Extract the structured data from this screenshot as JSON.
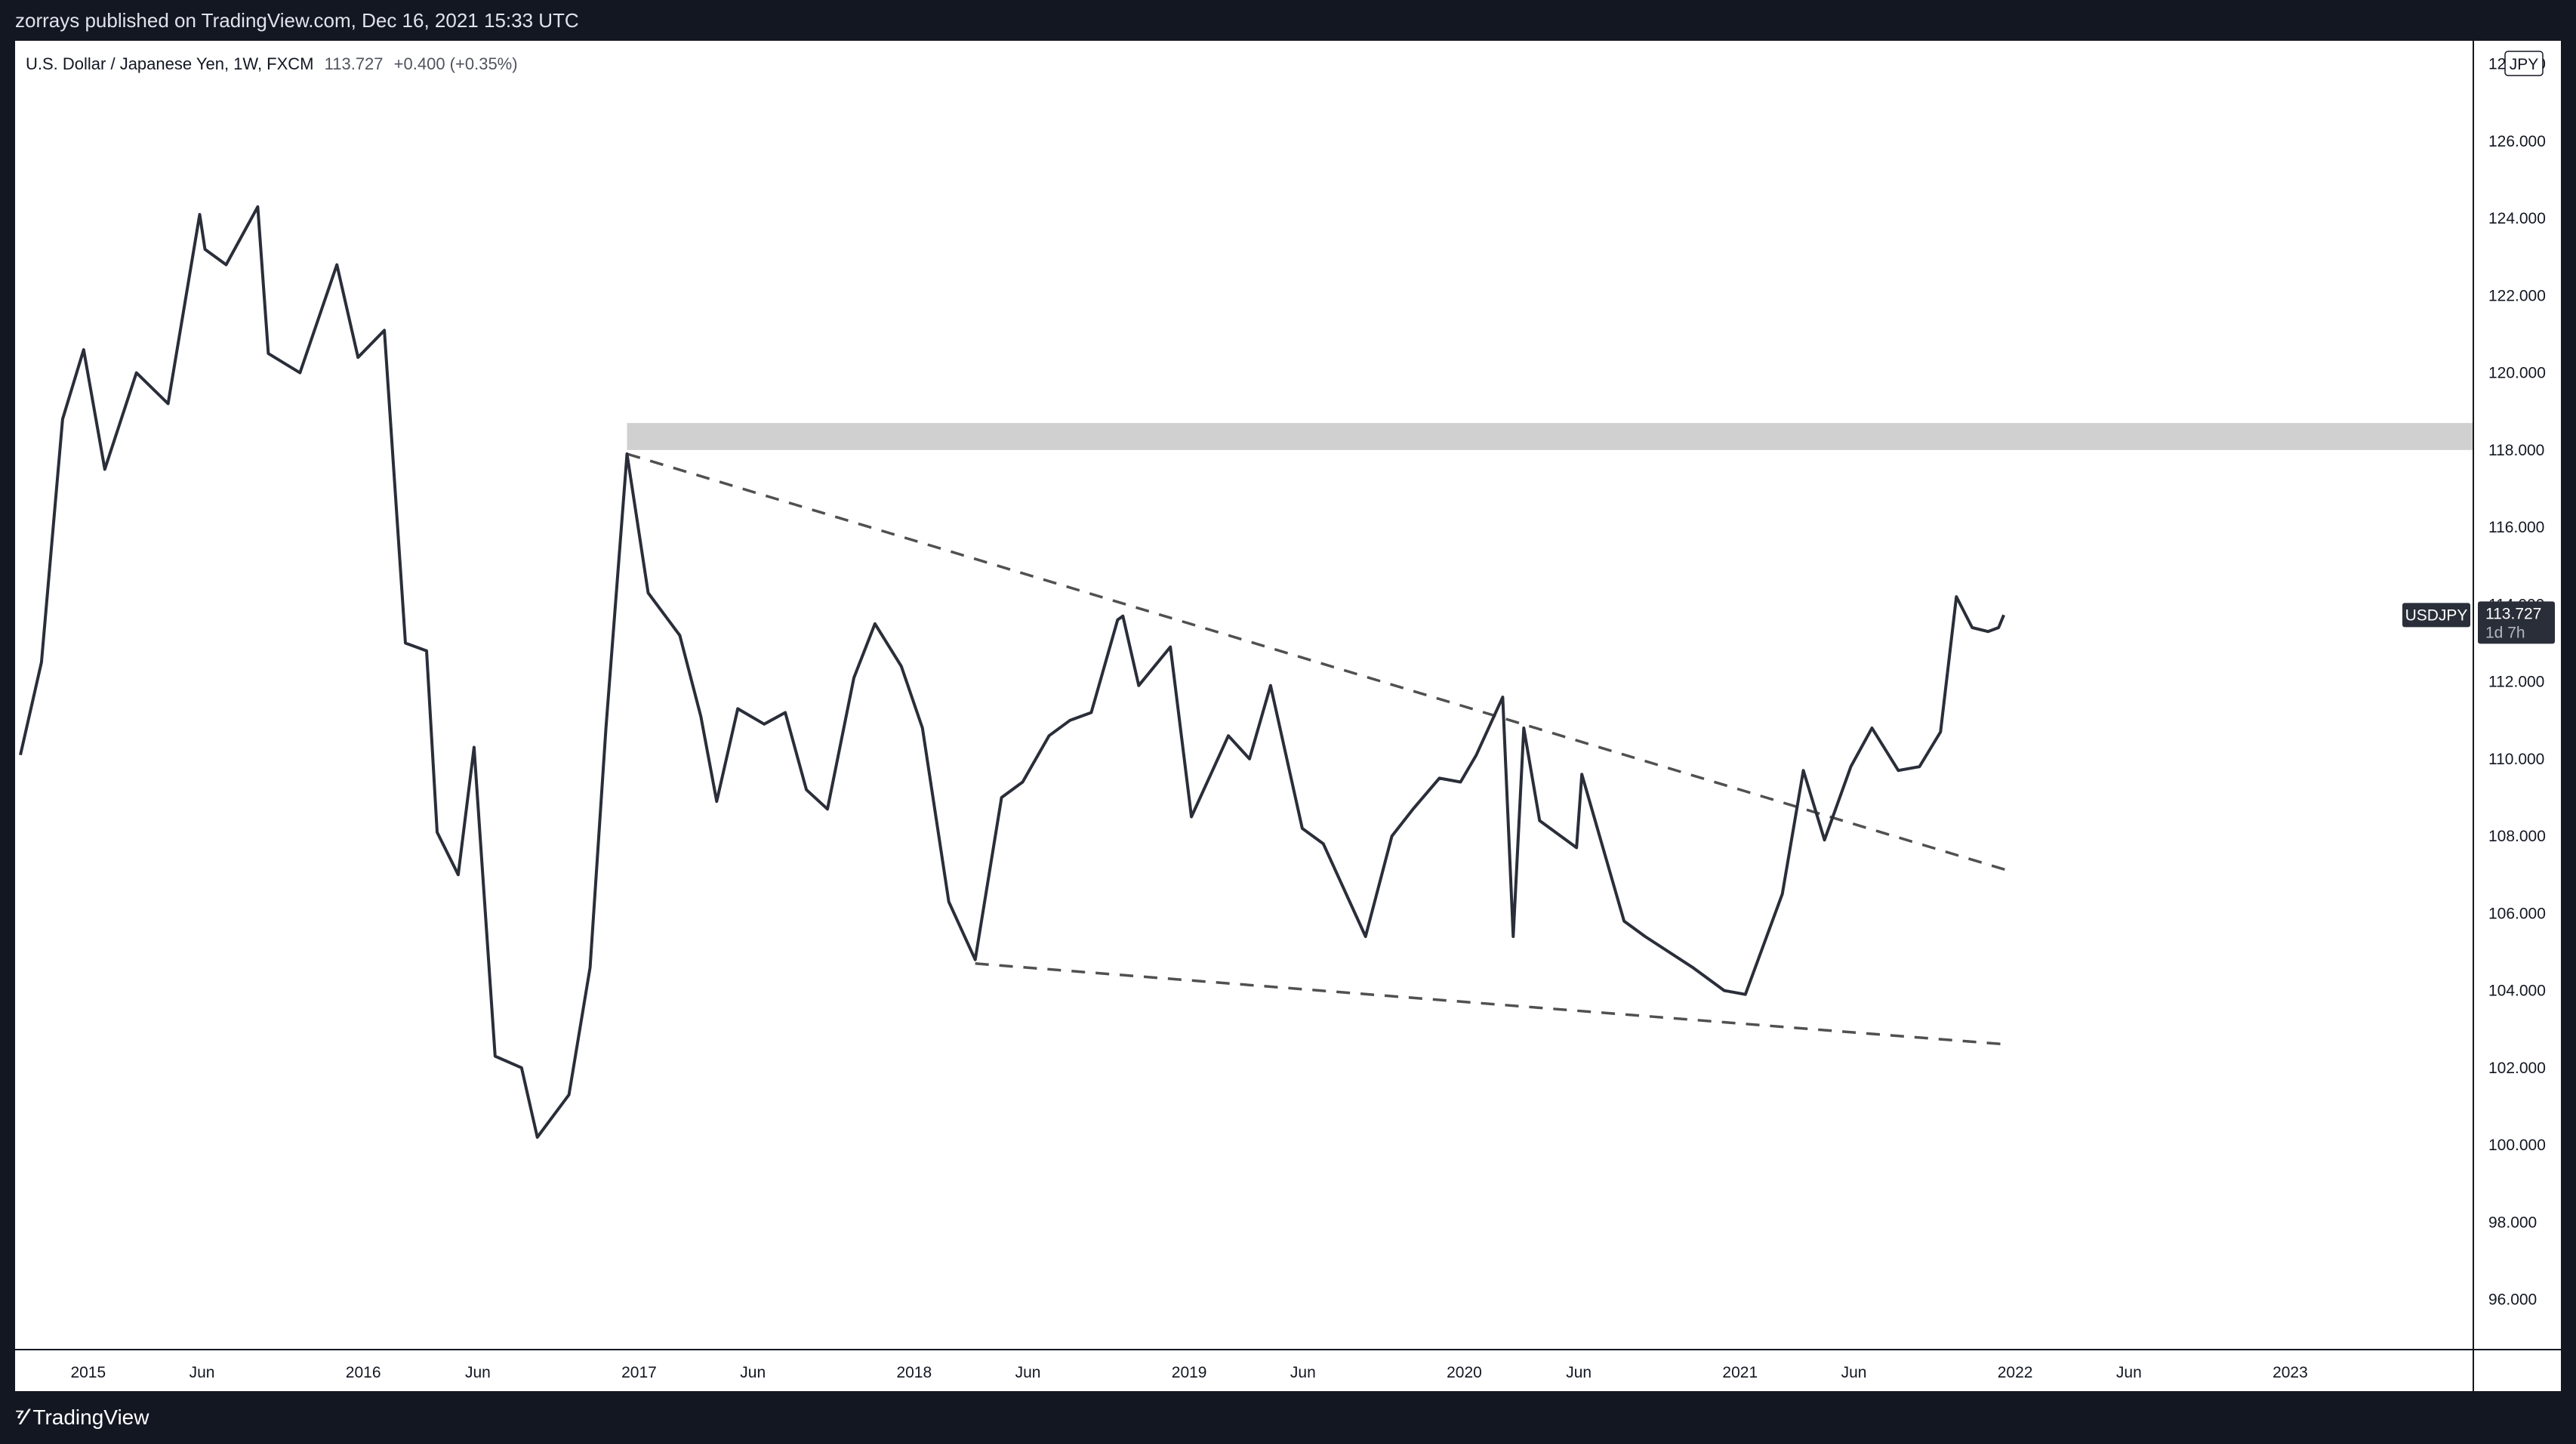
{
  "header": {
    "publish_info": "zorrays published on TradingView.com, Dec 16, 2021 15:33 UTC"
  },
  "legend": {
    "symbol_title": "U.S. Dollar / Japanese Yen, 1W, FXCM",
    "last": "113.727",
    "change": "+0.400 (+0.35%)"
  },
  "price_axis": {
    "currency": "JPY",
    "ticks": [
      "128.000",
      "126.000",
      "124.000",
      "122.000",
      "120.000",
      "118.000",
      "116.000",
      "114.000",
      "112.000",
      "110.000",
      "108.000",
      "106.000",
      "104.000",
      "102.000",
      "100.000",
      "98.000",
      "96.000"
    ],
    "symbol_tag": "USDJPY",
    "last_price_tag": "113.727",
    "countdown": "1d 7h"
  },
  "time_axis": {
    "labels": [
      "2015",
      "Jun",
      "2016",
      "Jun",
      "2017",
      "Jun",
      "2018",
      "Jun",
      "2019",
      "Jun",
      "2020",
      "Jun",
      "2021",
      "Jun",
      "2022",
      "Jun",
      "2023"
    ]
  },
  "footer": {
    "brand": "TradingView"
  },
  "colors": {
    "line": "#2a2e39",
    "zone": "#d0d0d0",
    "trend": "#505050",
    "frame": "#131722"
  },
  "chart_data": {
    "type": "line",
    "series": [
      {
        "name": "USDJPY",
        "x": [
          "2014-10-03",
          "2014-10-31",
          "2014-11-28",
          "2014-12-26",
          "2015-01-23",
          "2015-03-06",
          "2015-04-17",
          "2015-05-29",
          "2015-06-05",
          "2015-07-03",
          "2015-08-14",
          "2015-08-28",
          "2015-10-09",
          "2015-11-27",
          "2015-12-25",
          "2016-01-29",
          "2016-02-26",
          "2016-03-25",
          "2016-04-08",
          "2016-05-06",
          "2016-05-27",
          "2016-06-24",
          "2016-07-29",
          "2016-08-19",
          "2016-09-30",
          "2016-10-28",
          "2016-11-18",
          "2016-12-16",
          "2017-01-13",
          "2017-02-24",
          "2017-03-24",
          "2017-04-14",
          "2017-05-12",
          "2017-06-16",
          "2017-07-14",
          "2017-08-11",
          "2017-09-08",
          "2017-10-13",
          "2017-11-10",
          "2017-12-15",
          "2018-01-12",
          "2018-02-16",
          "2018-03-23",
          "2018-04-27",
          "2018-05-25",
          "2018-06-29",
          "2018-07-27",
          "2018-08-24",
          "2018-09-28",
          "2018-10-05",
          "2018-10-26",
          "2018-12-07",
          "2019-01-04",
          "2019-02-22",
          "2019-03-22",
          "2019-04-19",
          "2019-05-31",
          "2019-06-28",
          "2019-08-23",
          "2019-09-27",
          "2019-10-25",
          "2019-11-29",
          "2019-12-27",
          "2020-01-17",
          "2020-02-21",
          "2020-03-06",
          "2020-03-20",
          "2020-04-10",
          "2020-05-29",
          "2020-06-05",
          "2020-07-31",
          "2020-08-28",
          "2020-10-30",
          "2020-12-11",
          "2021-01-08",
          "2021-02-26",
          "2021-03-26",
          "2021-04-23",
          "2021-05-28",
          "2021-06-25",
          "2021-07-30",
          "2021-08-27",
          "2021-09-24",
          "2021-10-15",
          "2021-11-05",
          "2021-11-26",
          "2021-12-10",
          "2021-12-17"
        ],
        "values": [
          110.1,
          112.5,
          118.8,
          120.6,
          117.5,
          120.0,
          119.2,
          124.1,
          123.2,
          122.8,
          124.3,
          120.5,
          120.0,
          122.8,
          120.4,
          121.1,
          113.0,
          112.8,
          108.1,
          107.0,
          110.3,
          102.3,
          102.0,
          100.2,
          101.3,
          104.6,
          110.8,
          117.9,
          114.3,
          113.2,
          111.1,
          108.9,
          111.3,
          110.9,
          111.2,
          109.2,
          108.7,
          112.1,
          113.5,
          112.4,
          110.8,
          106.3,
          104.8,
          109.0,
          109.4,
          110.6,
          111.0,
          111.2,
          113.6,
          113.7,
          111.9,
          112.9,
          108.5,
          110.6,
          110.0,
          111.9,
          108.2,
          107.8,
          105.4,
          108.0,
          108.7,
          109.5,
          109.4,
          110.1,
          111.6,
          105.4,
          110.8,
          108.4,
          107.7,
          109.6,
          105.8,
          105.4,
          104.6,
          104.0,
          103.9,
          106.5,
          109.7,
          107.9,
          109.8,
          110.8,
          109.7,
          109.8,
          110.7,
          114.2,
          113.4,
          113.3,
          113.4,
          113.727
        ]
      }
    ],
    "resistance_zone": [
      118.0,
      118.7
    ],
    "trendlines": [
      {
        "style": "dashed",
        "from": [
          "2016-12-16",
          117.9
        ],
        "to": [
          "2021-12-24",
          107.1
        ]
      },
      {
        "style": "dashed",
        "from": [
          "2018-03-23",
          104.7
        ],
        "to": [
          "2021-12-24",
          102.6
        ]
      }
    ],
    "ylim": [
      94.7,
      128.6
    ],
    "xlim": [
      "2014-09-26",
      "2023-09-01"
    ],
    "grid": false
  }
}
